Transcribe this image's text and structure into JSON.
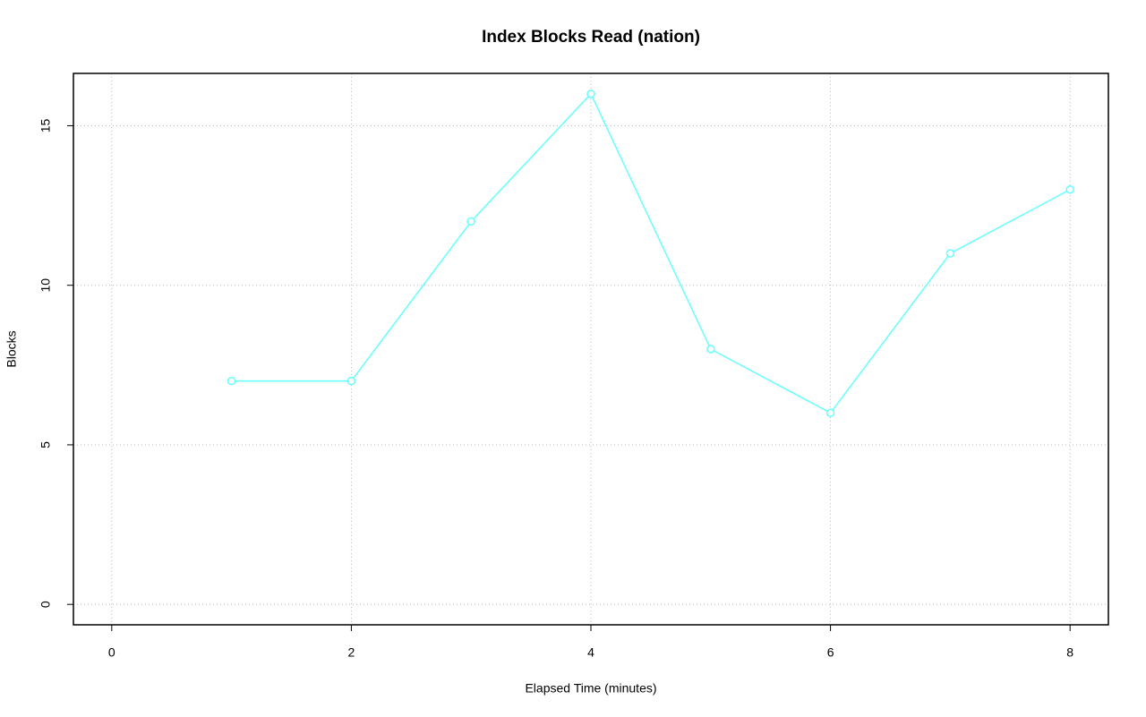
{
  "chart_data": {
    "type": "line",
    "title": "Index Blocks Read (nation)",
    "x_label": "Elapsed Time (minutes)",
    "y_label": "Blocks",
    "x": [
      1,
      2,
      3,
      4,
      5,
      6,
      7,
      8
    ],
    "series": [
      {
        "color": "#66ffff",
        "values": [
          7,
          7,
          12,
          16,
          8,
          6,
          11,
          13
        ]
      }
    ],
    "xlim": [
      -0.32,
      8.32
    ],
    "ylim": [
      -0.64,
      16.64
    ],
    "xticks": [
      0,
      2,
      4,
      6,
      8
    ],
    "yticks": [
      0,
      5,
      10,
      15
    ],
    "grid": true
  }
}
